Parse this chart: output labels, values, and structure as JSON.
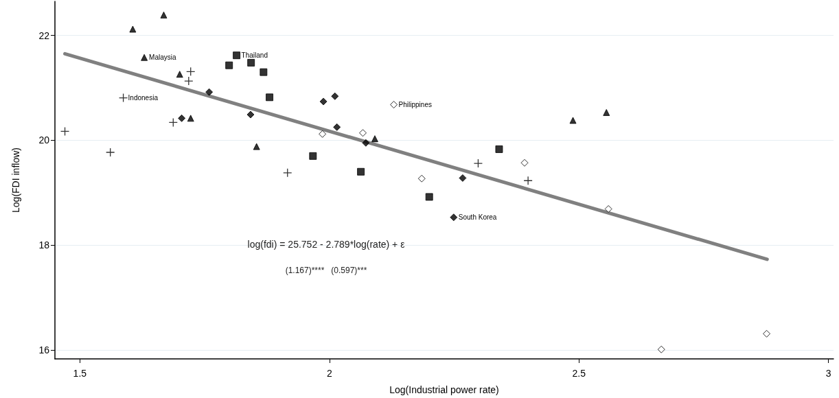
{
  "chart_data": {
    "type": "scatter",
    "xlabel": "Log(Industrial power rate)",
    "ylabel": "Log(FDI inflow)",
    "xlim": [
      1.45,
      3.01
    ],
    "ylim": [
      15.83,
      22.65
    ],
    "xticks": [
      1.5,
      2,
      2.5,
      3
    ],
    "yticks": [
      16,
      18,
      20,
      22
    ],
    "grid": "y",
    "series": [
      {
        "color": "#000000",
        "marker": "triangle",
        "x": [
          1.668,
          1.606,
          1.629,
          1.7,
          1.722,
          1.854,
          2.091,
          2.488,
          2.555
        ],
        "values": [
          22.39,
          22.12,
          21.58,
          21.26,
          20.42,
          19.88,
          20.03,
          20.38,
          20.53
        ]
      },
      {
        "color": "#000000",
        "marker": "cross",
        "x": [
          1.47,
          1.561,
          1.587,
          1.687,
          1.722,
          1.718,
          1.916,
          2.298,
          2.398
        ],
        "values": [
          20.17,
          19.77,
          20.81,
          20.34,
          21.31,
          21.13,
          19.38,
          19.56,
          19.23
        ]
      },
      {
        "color": "#000000",
        "marker": "diamond",
        "x": [
          1.759,
          1.704,
          1.842,
          1.988,
          2.011,
          2.015,
          2.073,
          2.267,
          2.249
        ],
        "values": [
          20.92,
          20.42,
          20.49,
          20.74,
          20.84,
          20.25,
          19.95,
          19.28,
          18.53
        ]
      },
      {
        "color": "#000000",
        "marker": "square",
        "x": [
          1.799,
          1.814,
          1.843,
          1.868,
          1.88,
          1.967,
          2.063,
          2.2,
          2.34
        ],
        "values": [
          21.43,
          21.62,
          21.48,
          21.3,
          20.82,
          19.7,
          19.4,
          18.92,
          19.83
        ]
      },
      {
        "color": "#ffffff",
        "marker": "diamond",
        "x": [
          1.986,
          2.067,
          2.129,
          2.185,
          2.391,
          2.559,
          2.665,
          2.876
        ],
        "values": [
          20.12,
          20.14,
          20.68,
          19.27,
          19.57,
          18.69,
          16.01,
          16.31
        ]
      },
      {
        "type": "line",
        "color": "#808080",
        "marker": "none",
        "x": [
          1.47,
          2.877
        ],
        "values": [
          21.65,
          17.73
        ]
      }
    ],
    "annotations": [
      {
        "text": "Malaysia",
        "x": 1.629,
        "y": 21.58
      },
      {
        "text": "Thailand",
        "x": 1.814,
        "y": 21.62
      },
      {
        "text": "Indonesia",
        "x": 1.587,
        "y": 20.81
      },
      {
        "text": "Philippines",
        "x": 2.129,
        "y": 20.68
      },
      {
        "text": "South Korea",
        "x": 2.249,
        "y": 18.53
      },
      "log(fdi) = 25.752 - 2.789*log(rate) + ε",
      "(1.167)****   (0.597)***"
    ]
  }
}
